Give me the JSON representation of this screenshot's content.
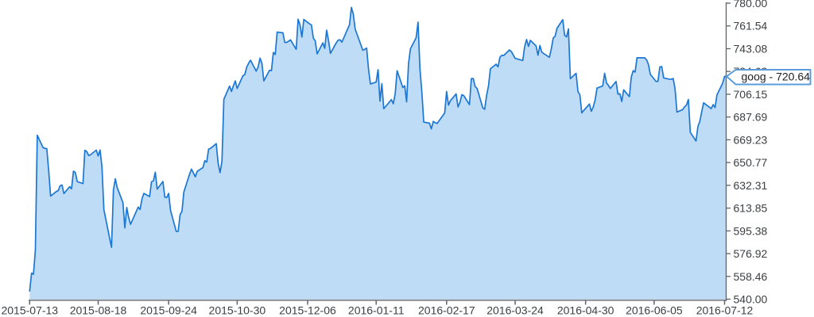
{
  "tooltip": {
    "label": "goog - 720.64"
  },
  "colors": {
    "line": "#1c77d4",
    "fill": "#bedcf5",
    "x_axis_line": "#8d939b",
    "y_axis_line": "#5f6368",
    "tick_mark": "#5f6368",
    "label_text": "#3c4043",
    "tooltip_border": "#5b9ddb",
    "tooltip_bg": "#ffffff"
  },
  "chart_data": {
    "type": "area",
    "title": "",
    "xlabel": "",
    "ylabel": "",
    "grid": false,
    "legend_position": "none",
    "ylim": [
      540,
      780
    ],
    "x_range": [
      "2015-07-13",
      "2016-07-12"
    ],
    "y_tick_labels": [
      "540.00",
      "558.46",
      "576.92",
      "595.38",
      "613.85",
      "632.31",
      "650.77",
      "669.23",
      "687.69",
      "706.15",
      "724.62",
      "743.08",
      "761.54",
      "780.00"
    ],
    "x_tick_labels": [
      "2015-07-13",
      "2015-08-18",
      "2015-09-24",
      "2015-10-30",
      "2015-12-06",
      "2016-01-11",
      "2016-02-17",
      "2016-03-24",
      "2016-04-30",
      "2016-06-05",
      "2016-07-12"
    ],
    "last_point": {
      "series": "goog",
      "date": "2016-07-12",
      "close": 720.64
    },
    "series": [
      {
        "name": "goog",
        "dates": [
          "2015-07-13",
          "2015-07-14",
          "2015-07-15",
          "2015-07-16",
          "2015-07-17",
          "2015-07-20",
          "2015-07-21",
          "2015-07-22",
          "2015-07-23",
          "2015-07-24",
          "2015-07-27",
          "2015-07-28",
          "2015-07-29",
          "2015-07-30",
          "2015-07-31",
          "2015-08-03",
          "2015-08-04",
          "2015-08-05",
          "2015-08-06",
          "2015-08-07",
          "2015-08-10",
          "2015-08-11",
          "2015-08-12",
          "2015-08-13",
          "2015-08-14",
          "2015-08-17",
          "2015-08-18",
          "2015-08-19",
          "2015-08-20",
          "2015-08-21",
          "2015-08-24",
          "2015-08-25",
          "2015-08-26",
          "2015-08-27",
          "2015-08-28",
          "2015-08-31",
          "2015-09-01",
          "2015-09-02",
          "2015-09-03",
          "2015-09-04",
          "2015-09-08",
          "2015-09-09",
          "2015-09-10",
          "2015-09-11",
          "2015-09-14",
          "2015-09-15",
          "2015-09-16",
          "2015-09-17",
          "2015-09-18",
          "2015-09-21",
          "2015-09-22",
          "2015-09-23",
          "2015-09-24",
          "2015-09-25",
          "2015-09-28",
          "2015-09-29",
          "2015-09-30",
          "2015-10-01",
          "2015-10-02",
          "2015-10-05",
          "2015-10-06",
          "2015-10-07",
          "2015-10-08",
          "2015-10-09",
          "2015-10-12",
          "2015-10-13",
          "2015-10-14",
          "2015-10-15",
          "2015-10-16",
          "2015-10-19",
          "2015-10-20",
          "2015-10-21",
          "2015-10-22",
          "2015-10-23",
          "2015-10-26",
          "2015-10-27",
          "2015-10-28",
          "2015-10-29",
          "2015-10-30",
          "2015-11-02",
          "2015-11-03",
          "2015-11-04",
          "2015-11-05",
          "2015-11-06",
          "2015-11-09",
          "2015-11-10",
          "2015-11-11",
          "2015-11-12",
          "2015-11-13",
          "2015-11-16",
          "2015-11-17",
          "2015-11-18",
          "2015-11-19",
          "2015-11-20",
          "2015-11-23",
          "2015-11-24",
          "2015-11-25",
          "2015-11-27",
          "2015-11-30",
          "2015-12-01",
          "2015-12-02",
          "2015-12-03",
          "2015-12-04",
          "2015-12-07",
          "2015-12-08",
          "2015-12-09",
          "2015-12-10",
          "2015-12-11",
          "2015-12-14",
          "2015-12-15",
          "2015-12-16",
          "2015-12-17",
          "2015-12-18",
          "2015-12-21",
          "2015-12-22",
          "2015-12-23",
          "2015-12-24",
          "2015-12-28",
          "2015-12-29",
          "2015-12-30",
          "2015-12-31",
          "2016-01-04",
          "2016-01-05",
          "2016-01-06",
          "2016-01-07",
          "2016-01-08",
          "2016-01-11",
          "2016-01-12",
          "2016-01-13",
          "2016-01-14",
          "2016-01-15",
          "2016-01-19",
          "2016-01-20",
          "2016-01-21",
          "2016-01-22",
          "2016-01-25",
          "2016-01-26",
          "2016-01-27",
          "2016-01-28",
          "2016-01-29",
          "2016-02-01",
          "2016-02-02",
          "2016-02-03",
          "2016-02-04",
          "2016-02-05",
          "2016-02-08",
          "2016-02-09",
          "2016-02-10",
          "2016-02-11",
          "2016-02-12",
          "2016-02-16",
          "2016-02-17",
          "2016-02-18",
          "2016-02-19",
          "2016-02-22",
          "2016-02-23",
          "2016-02-24",
          "2016-02-25",
          "2016-02-26",
          "2016-02-29",
          "2016-03-01",
          "2016-03-02",
          "2016-03-03",
          "2016-03-04",
          "2016-03-07",
          "2016-03-08",
          "2016-03-09",
          "2016-03-10",
          "2016-03-11",
          "2016-03-14",
          "2016-03-15",
          "2016-03-16",
          "2016-03-17",
          "2016-03-18",
          "2016-03-21",
          "2016-03-22",
          "2016-03-23",
          "2016-03-24",
          "2016-03-28",
          "2016-03-29",
          "2016-03-30",
          "2016-03-31",
          "2016-04-01",
          "2016-04-04",
          "2016-04-05",
          "2016-04-06",
          "2016-04-07",
          "2016-04-08",
          "2016-04-11",
          "2016-04-12",
          "2016-04-13",
          "2016-04-14",
          "2016-04-15",
          "2016-04-18",
          "2016-04-19",
          "2016-04-20",
          "2016-04-21",
          "2016-04-22",
          "2016-04-25",
          "2016-04-26",
          "2016-04-27",
          "2016-04-28",
          "2016-04-29",
          "2016-05-02",
          "2016-05-03",
          "2016-05-04",
          "2016-05-05",
          "2016-05-06",
          "2016-05-09",
          "2016-05-10",
          "2016-05-11",
          "2016-05-12",
          "2016-05-13",
          "2016-05-16",
          "2016-05-17",
          "2016-05-18",
          "2016-05-19",
          "2016-05-20",
          "2016-05-23",
          "2016-05-24",
          "2016-05-25",
          "2016-05-26",
          "2016-05-27",
          "2016-05-31",
          "2016-06-01",
          "2016-06-02",
          "2016-06-03",
          "2016-06-06",
          "2016-06-07",
          "2016-06-08",
          "2016-06-09",
          "2016-06-10",
          "2016-06-13",
          "2016-06-14",
          "2016-06-15",
          "2016-06-16",
          "2016-06-17",
          "2016-06-20",
          "2016-06-21",
          "2016-06-22",
          "2016-06-23",
          "2016-06-24",
          "2016-06-27",
          "2016-06-28",
          "2016-06-29",
          "2016-06-30",
          "2016-07-01",
          "2016-07-05",
          "2016-07-06",
          "2016-07-07",
          "2016-07-08",
          "2016-07-11",
          "2016-07-12"
        ],
        "closes": [
          546.55,
          561.1,
          560.22,
          579.85,
          672.93,
          663.02,
          662.3,
          662.1,
          644.28,
          623.56,
          627.26,
          628.0,
          631.93,
          632.59,
          625.61,
          631.21,
          629.56,
          643.78,
          642.68,
          635.3,
          633.73,
          660.78,
          659.56,
          656.45,
          657.12,
          660.87,
          656.13,
          660.9,
          646.83,
          612.48,
          589.61,
          582.06,
          628.62,
          637.61,
          630.38,
          618.25,
          597.79,
          614.34,
          606.25,
          600.7,
          614.66,
          612.72,
          621.35,
          625.77,
          623.24,
          635.14,
          635.98,
          642.9,
          629.25,
          635.44,
          622.69,
          622.36,
          625.8,
          611.97,
          594.89,
          594.97,
          608.42,
          611.29,
          626.91,
          641.47,
          645.44,
          642.36,
          639.16,
          643.61,
          646.67,
          652.3,
          651.16,
          661.74,
          662.2,
          666.1,
          650.28,
          642.61,
          651.79,
          702.0,
          712.78,
          708.49,
          712.95,
          716.92,
          710.81,
          721.11,
          722.16,
          728.11,
          731.25,
          733.76,
          724.89,
          728.32,
          735.4,
          731.23,
          717.0,
          725.6,
          725.3,
          740.0,
          738.41,
          756.6,
          755.98,
          748.28,
          748.15,
          750.26,
          742.6,
          767.04,
          762.38,
          752.54,
          766.81,
          763.25,
          762.37,
          751.61,
          749.46,
          738.87,
          747.77,
          743.4,
          758.09,
          749.43,
          739.31,
          747.77,
          750.0,
          750.31,
          748.4,
          762.51,
          776.6,
          771.0,
          758.88,
          741.84,
          742.58,
          743.62,
          726.39,
          714.47,
          716.03,
          726.07,
          700.56,
          714.72,
          694.45,
          701.79,
          698.45,
          706.59,
          725.25,
          711.67,
          713.04,
          699.99,
          730.96,
          742.95,
          752.0,
          764.65,
          726.95,
          708.01,
          683.57,
          682.74,
          678.11,
          684.12,
          683.11,
          682.4,
          691.0,
          708.4,
          697.35,
          700.91,
          706.46,
          695.85,
          699.56,
          705.75,
          705.07,
          697.77,
          718.81,
          718.85,
          712.42,
          710.89,
          695.16,
          693.97,
          705.24,
          712.82,
          726.82,
          730.49,
          728.33,
          736.09,
          737.78,
          737.6,
          742.09,
          740.75,
          738.06,
          735.3,
          733.53,
          744.77,
          750.53,
          744.95,
          749.91,
          745.29,
          737.8,
          745.69,
          740.28,
          739.15,
          736.1,
          743.09,
          751.72,
          753.2,
          759.66,
          766.61,
          753.93,
          752.67,
          759.14,
          718.77,
          723.15,
          708.14,
          705.84,
          691.02,
          693.01,
          698.21,
          692.36,
          695.7,
          701.43,
          711.12,
          712.9,
          723.18,
          715.29,
          713.31,
          710.83,
          716.49,
          706.23,
          706.63,
          700.32,
          709.74,
          704.24,
          720.09,
          725.27,
          724.12,
          735.72,
          735.72,
          734.15,
          730.4,
          722.34,
          716.55,
          716.65,
          728.28,
          728.58,
          719.41,
          718.36,
          718.27,
          718.92,
          710.36,
          691.72,
          693.71,
          695.94,
          697.46,
          701.87,
          675.22,
          668.26,
          680.04,
          684.11,
          692.1,
          699.21,
          694.49,
          697.77,
          695.36,
          705.63,
          715.09,
          720.64
        ]
      }
    ]
  }
}
